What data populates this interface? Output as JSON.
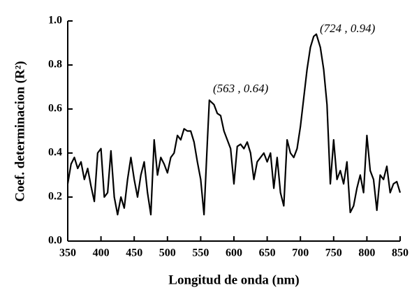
{
  "chart_data": {
    "type": "line",
    "xlabel": "Longitud de onda (nm)",
    "ylabel": "Coef. determinacion (R²)",
    "annotations": [
      "(724 , 0.94)",
      "(563 , 0.64)"
    ],
    "color": "#000000",
    "xlim": [
      350,
      850
    ],
    "ylim": [
      0,
      1
    ],
    "xticks": [
      350,
      400,
      450,
      500,
      550,
      600,
      650,
      700,
      750,
      800,
      850
    ],
    "yticks": [
      {
        "value": 0,
        "label": "0.0"
      },
      0.2,
      0.4,
      0.6,
      0.8,
      {
        "value": 1,
        "label": "1.0"
      }
    ],
    "x": [
      350,
      355,
      360,
      365,
      370,
      375,
      380,
      385,
      390,
      395,
      400,
      405,
      410,
      415,
      420,
      425,
      430,
      435,
      440,
      445,
      450,
      455,
      460,
      465,
      470,
      475,
      480,
      485,
      490,
      495,
      500,
      505,
      510,
      515,
      520,
      525,
      530,
      535,
      540,
      545,
      550,
      555,
      560,
      563,
      570,
      575,
      580,
      585,
      590,
      595,
      600,
      605,
      610,
      615,
      620,
      625,
      630,
      635,
      640,
      645,
      650,
      655,
      660,
      665,
      670,
      675,
      680,
      685,
      690,
      695,
      700,
      705,
      710,
      715,
      720,
      724,
      730,
      735,
      740,
      745,
      750,
      755,
      760,
      765,
      770,
      775,
      780,
      785,
      790,
      795,
      800,
      805,
      810,
      815,
      820,
      825,
      830,
      835,
      840,
      845,
      850
    ],
    "values": [
      0.26,
      0.35,
      0.38,
      0.33,
      0.36,
      0.28,
      0.33,
      0.25,
      0.18,
      0.4,
      0.42,
      0.2,
      0.22,
      0.41,
      0.2,
      0.12,
      0.2,
      0.15,
      0.28,
      0.38,
      0.28,
      0.2,
      0.3,
      0.36,
      0.22,
      0.12,
      0.46,
      0.3,
      0.38,
      0.35,
      0.31,
      0.38,
      0.4,
      0.48,
      0.46,
      0.51,
      0.5,
      0.5,
      0.45,
      0.36,
      0.28,
      0.12,
      0.45,
      0.64,
      0.62,
      0.58,
      0.57,
      0.5,
      0.46,
      0.42,
      0.26,
      0.43,
      0.44,
      0.42,
      0.45,
      0.4,
      0.28,
      0.36,
      0.38,
      0.4,
      0.36,
      0.4,
      0.24,
      0.38,
      0.22,
      0.16,
      0.46,
      0.4,
      0.38,
      0.42,
      0.52,
      0.65,
      0.78,
      0.88,
      0.93,
      0.94,
      0.88,
      0.78,
      0.62,
      0.26,
      0.46,
      0.28,
      0.32,
      0.26,
      0.36,
      0.13,
      0.16,
      0.24,
      0.3,
      0.22,
      0.48,
      0.32,
      0.28,
      0.14,
      0.3,
      0.28,
      0.34,
      0.22,
      0.26,
      0.27,
      0.22
    ]
  }
}
